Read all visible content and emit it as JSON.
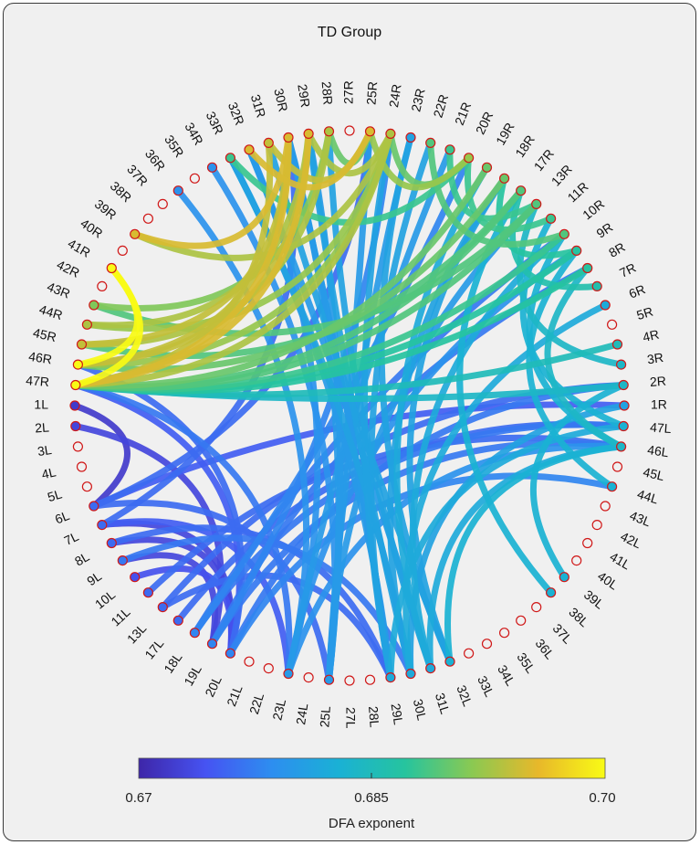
{
  "title": "TD Group",
  "colorbar": {
    "label": "DFA exponent",
    "min_label": "0.67",
    "mid_label": "0.685",
    "max_label": "0.70",
    "min": 0.67,
    "max": 0.7,
    "stops": [
      "#3e26a8",
      "#4653f2",
      "#2d8ef0",
      "#1ab1d5",
      "#26c49e",
      "#8ac952",
      "#e8b82a",
      "#f9fb15"
    ]
  },
  "node_ring_color": "#d01818",
  "nodes": [
    "27R",
    "25R",
    "24R",
    "23R",
    "22R",
    "21R",
    "20R",
    "19R",
    "18R",
    "17R",
    "13R",
    "11R",
    "10R",
    "9R",
    "8R",
    "7R",
    "6R",
    "5R",
    "4R",
    "3R",
    "2R",
    "1R",
    "47L",
    "46L",
    "45L",
    "44L",
    "43L",
    "42L",
    "41L",
    "40L",
    "39L",
    "38L",
    "37L",
    "36L",
    "35L",
    "34L",
    "33L",
    "32L",
    "31L",
    "30L",
    "29L",
    "28L",
    "27L",
    "25L",
    "24L",
    "23L",
    "22L",
    "21L",
    "20L",
    "19L",
    "18L",
    "17L",
    "13L",
    "11L",
    "10L",
    "9L",
    "8L",
    "7L",
    "6L",
    "5L",
    "4L",
    "3L",
    "2L",
    "1L",
    "47R",
    "46R",
    "45R",
    "44R",
    "43R",
    "42R",
    "41R",
    "40R",
    "39R",
    "38R",
    "37R",
    "36R",
    "35R",
    "34R",
    "33R",
    "32R",
    "31R",
    "30R",
    "29R",
    "28R"
  ],
  "connections": [
    {
      "a": "47R",
      "b": "30R",
      "value": 0.695
    },
    {
      "a": "47R",
      "b": "29R",
      "value": 0.695
    },
    {
      "a": "47R",
      "b": "31R",
      "value": 0.694
    },
    {
      "a": "47R",
      "b": "24R",
      "value": 0.693
    },
    {
      "a": "47R",
      "b": "19R",
      "value": 0.69
    },
    {
      "a": "47R",
      "b": "17R",
      "value": 0.689
    },
    {
      "a": "47R",
      "b": "13R",
      "value": 0.689
    },
    {
      "a": "47R",
      "b": "10R",
      "value": 0.688
    },
    {
      "a": "47R",
      "b": "9R",
      "value": 0.687
    },
    {
      "a": "47R",
      "b": "8R",
      "value": 0.687
    },
    {
      "a": "47R",
      "b": "2R",
      "value": 0.684
    },
    {
      "a": "47R",
      "b": "4R",
      "value": 0.685
    },
    {
      "a": "46R",
      "b": "30R",
      "value": 0.694
    },
    {
      "a": "46R",
      "b": "29R",
      "value": 0.694
    },
    {
      "a": "46R",
      "b": "24R",
      "value": 0.692
    },
    {
      "a": "46R",
      "b": "18R",
      "value": 0.69
    },
    {
      "a": "45R",
      "b": "30R",
      "value": 0.694
    },
    {
      "a": "45R",
      "b": "28R",
      "value": 0.693
    },
    {
      "a": "45R",
      "b": "17R",
      "value": 0.689
    },
    {
      "a": "44R",
      "b": "29R",
      "value": 0.693
    },
    {
      "a": "44R",
      "b": "24R",
      "value": 0.692
    },
    {
      "a": "43R",
      "b": "28R",
      "value": 0.691
    },
    {
      "a": "43R",
      "b": "13R",
      "value": 0.689
    },
    {
      "a": "41R",
      "b": "47R",
      "value": 0.7
    },
    {
      "a": "41R",
      "b": "46R",
      "value": 0.7
    },
    {
      "a": "39R",
      "b": "30R",
      "value": 0.695
    },
    {
      "a": "39R",
      "b": "24R",
      "value": 0.693
    },
    {
      "a": "32R",
      "b": "25R",
      "value": 0.695
    },
    {
      "a": "31R",
      "b": "25R",
      "value": 0.694
    },
    {
      "a": "29R",
      "b": "24R",
      "value": 0.693
    },
    {
      "a": "28R",
      "b": "25R",
      "value": 0.69
    },
    {
      "a": "25R",
      "b": "20R",
      "value": 0.692
    },
    {
      "a": "24R",
      "b": "20R",
      "value": 0.69
    },
    {
      "a": "22R",
      "b": "10R",
      "value": 0.689
    },
    {
      "a": "21R",
      "b": "13R",
      "value": 0.688
    },
    {
      "a": "33R",
      "b": "20R",
      "value": 0.688
    },
    {
      "a": "20R",
      "b": "11R",
      "value": 0.688
    },
    {
      "a": "18R",
      "b": "9R",
      "value": 0.687
    },
    {
      "a": "17R",
      "b": "7R",
      "value": 0.686
    },
    {
      "a": "13R",
      "b": "3R",
      "value": 0.684
    },
    {
      "a": "11R",
      "b": "47L",
      "value": 0.683
    },
    {
      "a": "10R",
      "b": "46L",
      "value": 0.683
    },
    {
      "a": "9R",
      "b": "44L",
      "value": 0.683
    },
    {
      "a": "8R",
      "b": "46L",
      "value": 0.684
    },
    {
      "a": "19R",
      "b": "31L",
      "value": 0.682
    },
    {
      "a": "18R",
      "b": "30L",
      "value": 0.681
    },
    {
      "a": "17R",
      "b": "38L",
      "value": 0.683
    },
    {
      "a": "22R",
      "b": "29L",
      "value": 0.681
    },
    {
      "a": "23R",
      "b": "25L",
      "value": 0.68
    },
    {
      "a": "21R",
      "b": "23L",
      "value": 0.68
    },
    {
      "a": "33R",
      "b": "30L",
      "value": 0.681
    },
    {
      "a": "32R",
      "b": "31L",
      "value": 0.68
    },
    {
      "a": "31R",
      "b": "32L",
      "value": 0.681
    },
    {
      "a": "30R",
      "b": "29L",
      "value": 0.68
    },
    {
      "a": "29R",
      "b": "30L",
      "value": 0.681
    },
    {
      "a": "28R",
      "b": "31L",
      "value": 0.681
    },
    {
      "a": "25R",
      "b": "25L",
      "value": 0.68
    },
    {
      "a": "24R",
      "b": "29L",
      "value": 0.681
    },
    {
      "a": "23R",
      "b": "32L",
      "value": 0.681
    },
    {
      "a": "33R",
      "b": "29L",
      "value": 0.68
    },
    {
      "a": "36R",
      "b": "23L",
      "value": 0.679
    },
    {
      "a": "34R",
      "b": "25L",
      "value": 0.679
    },
    {
      "a": "32R",
      "b": "23L",
      "value": 0.679
    },
    {
      "a": "30R",
      "b": "25L",
      "value": 0.68
    },
    {
      "a": "47R",
      "b": "20L",
      "value": 0.675
    },
    {
      "a": "47R",
      "b": "23L",
      "value": 0.677
    },
    {
      "a": "46R",
      "b": "20L",
      "value": 0.676
    },
    {
      "a": "1L",
      "b": "6L",
      "value": 0.672
    },
    {
      "a": "2L",
      "b": "19L",
      "value": 0.673
    },
    {
      "a": "7L",
      "b": "20L",
      "value": 0.673
    },
    {
      "a": "8L",
      "b": "20L",
      "value": 0.673
    },
    {
      "a": "9L",
      "b": "19L",
      "value": 0.673
    },
    {
      "a": "10L",
      "b": "20L",
      "value": 0.674
    },
    {
      "a": "13L",
      "b": "29L",
      "value": 0.676
    },
    {
      "a": "7L",
      "b": "23L",
      "value": 0.675
    },
    {
      "a": "6L",
      "b": "25L",
      "value": 0.676
    },
    {
      "a": "8L",
      "b": "29L",
      "value": 0.676
    },
    {
      "a": "9L",
      "b": "30L",
      "value": 0.677
    },
    {
      "a": "18L",
      "b": "47L",
      "value": 0.677
    },
    {
      "a": "19L",
      "b": "46L",
      "value": 0.677
    },
    {
      "a": "20L",
      "b": "44L",
      "value": 0.678
    },
    {
      "a": "18L",
      "b": "10R",
      "value": 0.677
    },
    {
      "a": "19L",
      "b": "8R",
      "value": 0.677
    },
    {
      "a": "20L",
      "b": "2R",
      "value": 0.677
    },
    {
      "a": "7L",
      "b": "30R",
      "value": 0.676
    },
    {
      "a": "6L",
      "b": "25R",
      "value": 0.676
    },
    {
      "a": "18L",
      "b": "20R",
      "value": 0.678
    },
    {
      "a": "19L",
      "b": "24R",
      "value": 0.678
    },
    {
      "a": "23L",
      "b": "9R",
      "value": 0.679
    },
    {
      "a": "25L",
      "b": "13R",
      "value": 0.68
    },
    {
      "a": "30L",
      "b": "1R",
      "value": 0.681
    },
    {
      "a": "31L",
      "b": "46L",
      "value": 0.682
    },
    {
      "a": "29L",
      "b": "47L",
      "value": 0.682
    },
    {
      "a": "32L",
      "b": "46L",
      "value": 0.683
    },
    {
      "a": "39L",
      "b": "2R",
      "value": 0.683
    },
    {
      "a": "23L",
      "b": "46L",
      "value": 0.679
    },
    {
      "a": "25L",
      "b": "29R",
      "value": 0.68
    },
    {
      "a": "32L",
      "b": "18R",
      "value": 0.681
    },
    {
      "a": "31L",
      "b": "10R",
      "value": 0.682
    },
    {
      "a": "30L",
      "b": "6R",
      "value": 0.682
    },
    {
      "a": "29L",
      "b": "30R",
      "value": 0.68
    },
    {
      "a": "6L",
      "b": "1R",
      "value": 0.675
    },
    {
      "a": "13L",
      "b": "2R",
      "value": 0.676
    },
    {
      "a": "17L",
      "b": "47L",
      "value": 0.676
    },
    {
      "a": "11L",
      "b": "46L",
      "value": 0.676
    }
  ]
}
